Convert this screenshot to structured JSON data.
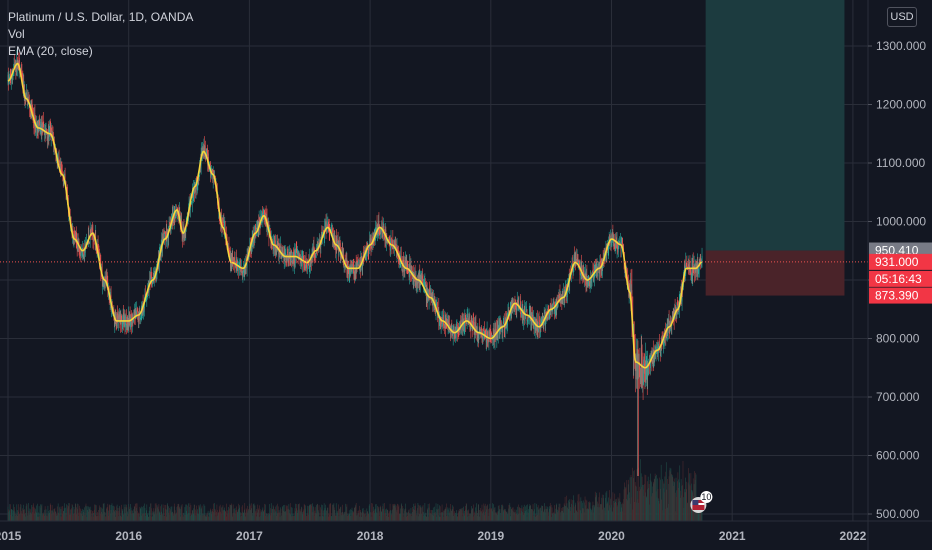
{
  "legend": {
    "symbol": "Platinum / U.S. Dollar, 1D, OANDA",
    "vol": "Vol",
    "ema": "EMA (20, close)"
  },
  "currency": "USD",
  "colors": {
    "background": "#131722",
    "grid": "#2a2e39",
    "up": "#26a69a",
    "down": "#ef5350",
    "ema": "#f5d63d",
    "profit_zone": "#1c3b3f",
    "loss_zone": "#4a2329",
    "price_line": "#ef5350"
  },
  "chart_data": {
    "type": "candlestick",
    "x_ticks": [
      "2015",
      "2016",
      "2017",
      "2018",
      "2019",
      "2020",
      "2021",
      "2022"
    ],
    "y_ticks": [
      "1300.000",
      "1200.000",
      "1100.000",
      "1000.000",
      "900.000",
      "800.000",
      "700.000",
      "600.000",
      "500.000"
    ],
    "ylim": [
      490,
      1390
    ],
    "xlim": [
      2015.0,
      2022.1
    ],
    "price_labels": [
      {
        "value": 950.41,
        "text": "950.410",
        "style": "gray"
      },
      {
        "value": 931.0,
        "text": "931.000",
        "style": "red"
      },
      {
        "text": "05:16:43",
        "style": "red"
      },
      {
        "value": 873.39,
        "text": "873.390",
        "style": "red"
      }
    ],
    "current_price": 931.0,
    "position": {
      "entry": 950.41,
      "stop": 873.39,
      "target": 1390,
      "start_x": 2020.78,
      "end_x": 2021.93
    },
    "series_ema_anchors": [
      [
        2015.0,
        1240
      ],
      [
        2015.08,
        1270
      ],
      [
        2015.15,
        1210
      ],
      [
        2015.25,
        1160
      ],
      [
        2015.35,
        1150
      ],
      [
        2015.45,
        1080
      ],
      [
        2015.55,
        970
      ],
      [
        2015.62,
        950
      ],
      [
        2015.7,
        980
      ],
      [
        2015.8,
        900
      ],
      [
        2015.9,
        830
      ],
      [
        2016.0,
        830
      ],
      [
        2016.08,
        840
      ],
      [
        2016.2,
        900
      ],
      [
        2016.3,
        970
      ],
      [
        2016.4,
        1020
      ],
      [
        2016.45,
        980
      ],
      [
        2016.55,
        1060
      ],
      [
        2016.62,
        1120
      ],
      [
        2016.7,
        1080
      ],
      [
        2016.78,
        990
      ],
      [
        2016.85,
        930
      ],
      [
        2016.95,
        920
      ],
      [
        2017.05,
        980
      ],
      [
        2017.12,
        1010
      ],
      [
        2017.2,
        960
      ],
      [
        2017.3,
        940
      ],
      [
        2017.38,
        940
      ],
      [
        2017.48,
        930
      ],
      [
        2017.55,
        950
      ],
      [
        2017.65,
        990
      ],
      [
        2017.72,
        960
      ],
      [
        2017.82,
        920
      ],
      [
        2017.9,
        920
      ],
      [
        2018.0,
        960
      ],
      [
        2018.08,
        990
      ],
      [
        2018.18,
        960
      ],
      [
        2018.3,
        920
      ],
      [
        2018.4,
        900
      ],
      [
        2018.5,
        870
      ],
      [
        2018.6,
        830
      ],
      [
        2018.7,
        810
      ],
      [
        2018.8,
        830
      ],
      [
        2018.9,
        810
      ],
      [
        2019.0,
        800
      ],
      [
        2019.1,
        820
      ],
      [
        2019.2,
        860
      ],
      [
        2019.3,
        840
      ],
      [
        2019.4,
        820
      ],
      [
        2019.5,
        850
      ],
      [
        2019.6,
        870
      ],
      [
        2019.7,
        930
      ],
      [
        2019.8,
        900
      ],
      [
        2019.9,
        920
      ],
      [
        2020.0,
        970
      ],
      [
        2020.08,
        960
      ],
      [
        2020.15,
        880
      ],
      [
        2020.2,
        760
      ],
      [
        2020.28,
        750
      ],
      [
        2020.38,
        780
      ],
      [
        2020.48,
        820
      ],
      [
        2020.55,
        850
      ],
      [
        2020.62,
        920
      ],
      [
        2020.7,
        920
      ],
      [
        2020.75,
        931
      ]
    ]
  }
}
